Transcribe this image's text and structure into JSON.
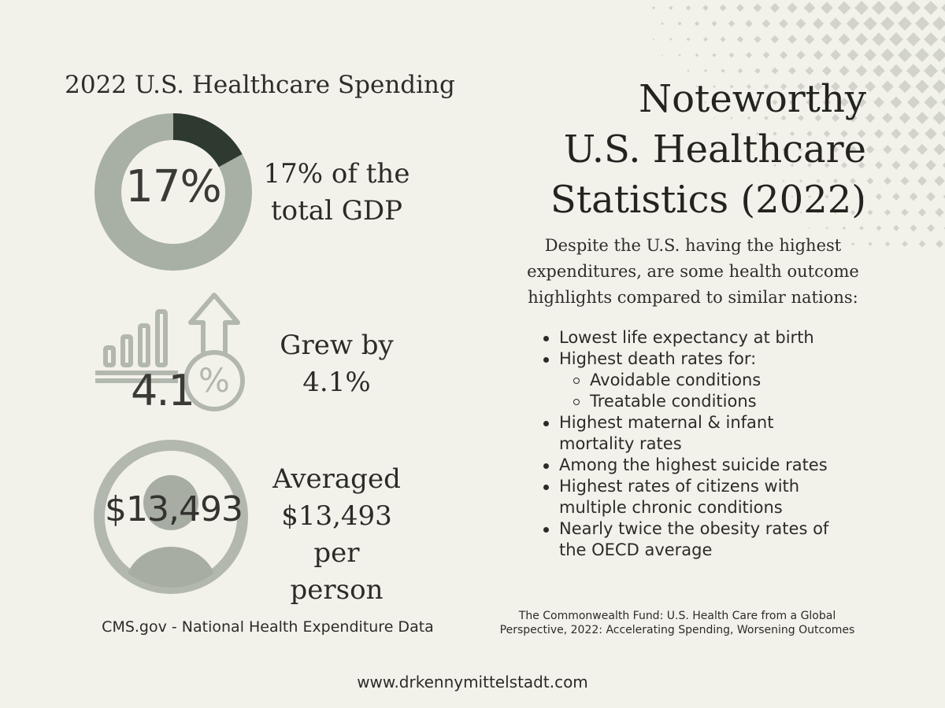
{
  "left": {
    "title": "2022 U.S. Healthcare Spending",
    "gdp": {
      "value": "17%",
      "fraction": 0.17,
      "line1": "17% of the",
      "line2": "total GDP"
    },
    "growth": {
      "value": "4.1",
      "line1": "Grew by",
      "line2": "4.1%"
    },
    "per_person": {
      "value": "$13,493",
      "line1": "Averaged",
      "line2": "$13,493 per",
      "line3": "person"
    },
    "source": "CMS.gov - National Health Expenditure Data"
  },
  "right": {
    "title_line1": "Noteworthy",
    "title_line2": "U.S. Healthcare",
    "title_line3": "Statistics (2022)",
    "intro_line1": "Despite the U.S. having the highest",
    "intro_line2": "expenditures, are some health outcome",
    "intro_line3": "highlights compared to similar nations:",
    "bullets": {
      "b1": "Lowest life expectancy at birth",
      "b2": "Highest death rates for:",
      "b2_sub1": "Avoidable conditions",
      "b2_sub2": "Treatable conditions",
      "b3_line1": "Highest maternal & infant",
      "b3_line2": "mortality rates",
      "b4": "Among the highest suicide rates",
      "b5_line1": "Highest rates of citizens with",
      "b5_line2": "multiple chronic conditions",
      "b6_line1": "Nearly twice the obesity rates of",
      "b6_line2": "the OECD average"
    },
    "source_line1": "The Commonwealth Fund: U.S. Health Care from a Global",
    "source_line2": "Perspective, 2022: Accelerating Spending, Worsening Outcomes"
  },
  "footer": {
    "website": "www.drkennymittelstadt.com"
  },
  "colors": {
    "background": "#f3f2ea",
    "ring": "#a7b0a2",
    "ring_highlight": "#2e3a30",
    "icon": "#b3b8ae",
    "text": "#2b2b28"
  },
  "icons": {
    "growth": "bar-chart-arrow-percent-icon",
    "person": "person-avatar-icon"
  }
}
